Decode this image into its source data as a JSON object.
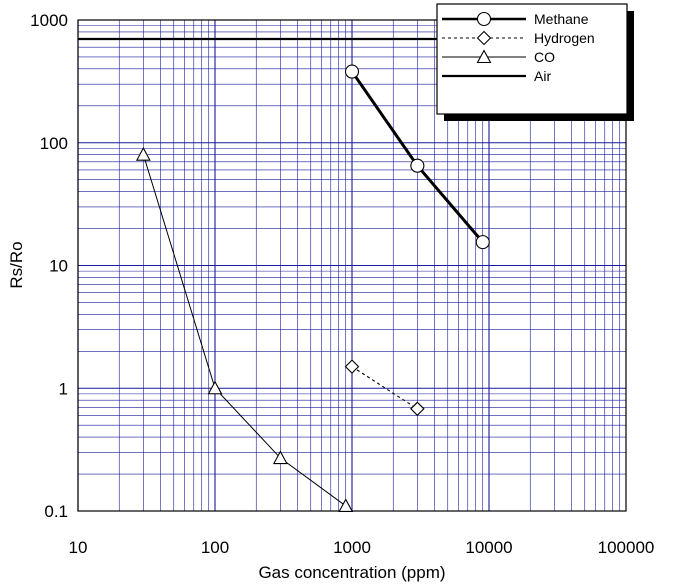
{
  "chart_data": {
    "type": "line",
    "xscale": "log",
    "yscale": "log",
    "xlim": [
      10,
      100000
    ],
    "ylim": [
      0.1,
      1000
    ],
    "xlabel": "Gas concentration (ppm)",
    "ylabel": "Rs/Ro",
    "x_tick_labels": [
      "10",
      "100",
      "1000",
      "10000",
      "100000"
    ],
    "y_tick_labels": [
      "0.1",
      "1",
      "10",
      "100",
      "1000"
    ],
    "grid": true,
    "legend_position": "top-right",
    "colors": {
      "grid": "#1a1a9a",
      "line": "#000000",
      "background": "#ffffff"
    },
    "series": [
      {
        "name": "Methane",
        "marker": "circle",
        "style": "solid-thick",
        "x": [
          1000,
          3000,
          9000
        ],
        "y": [
          380,
          65,
          15.5
        ]
      },
      {
        "name": "Hydrogen",
        "marker": "diamond",
        "style": "dashed",
        "x": [
          1000,
          3000
        ],
        "y": [
          1.5,
          0.68
        ]
      },
      {
        "name": "CO",
        "marker": "triangle",
        "style": "solid-thin",
        "x": [
          30,
          100,
          300,
          900
        ],
        "y": [
          80,
          1.0,
          0.27,
          0.11
        ]
      },
      {
        "name": "Air",
        "marker": "none",
        "style": "solid-medium",
        "x": [
          10,
          100000
        ],
        "y": [
          700,
          700
        ]
      }
    ]
  }
}
